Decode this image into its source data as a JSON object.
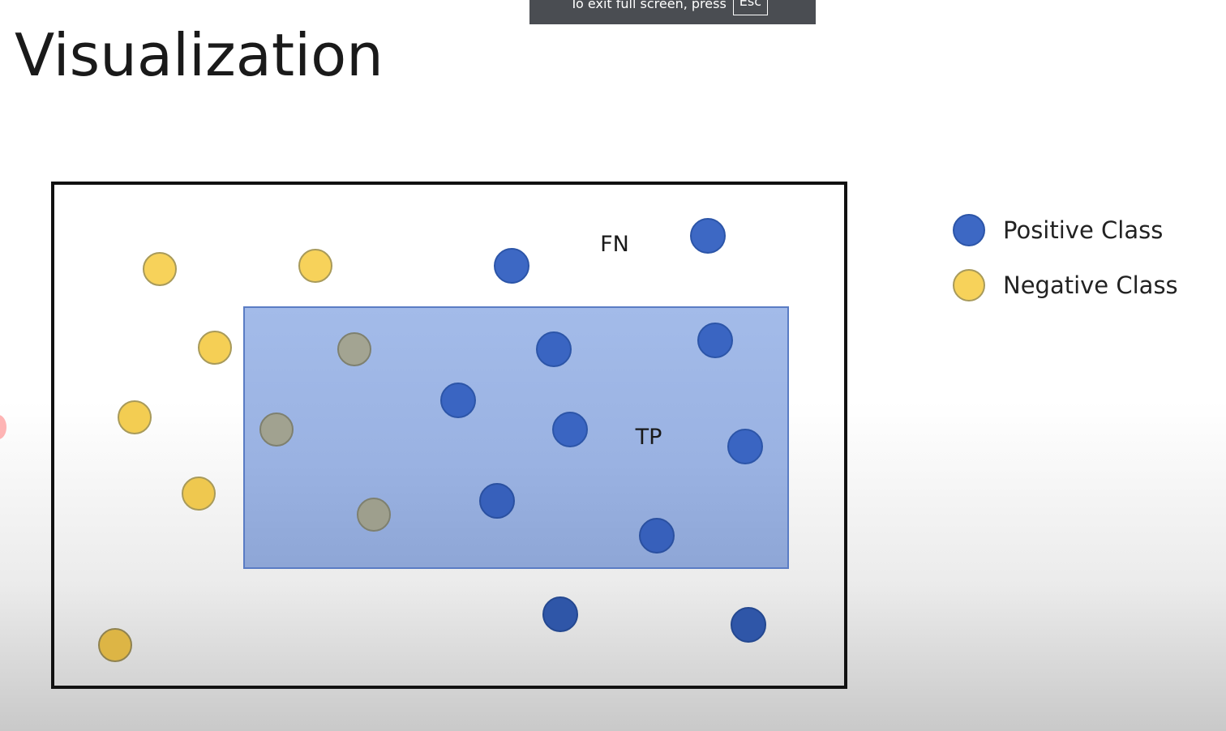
{
  "fullscreen_notice": {
    "text": "To exit full screen, press",
    "key": "Esc"
  },
  "slide": {
    "title": "Visualization"
  },
  "diagram": {
    "labels": {
      "fn": "FN",
      "tp": "TP"
    },
    "colors": {
      "positive": "#3d68c4",
      "negative": "#f7d25a",
      "negative_in_region": "#a1a291",
      "region_fill": "#9fb7e6",
      "region_stroke": "#5a7cc4",
      "border": "#111111"
    }
  },
  "legend": {
    "items": [
      {
        "label": "Positive Class",
        "color": "#3d68c4"
      },
      {
        "label": "Negative Class",
        "color": "#f7d25a"
      }
    ]
  }
}
